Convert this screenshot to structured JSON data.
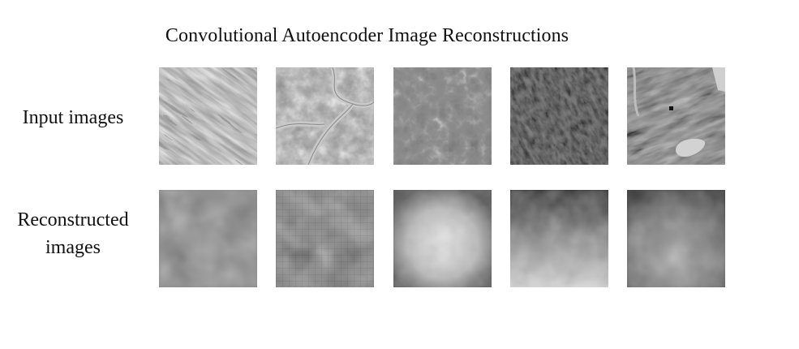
{
  "figure": {
    "title": "Convolutional Autoencoder Image Reconstructions"
  },
  "rows": [
    {
      "label_lines": [
        "Input images"
      ],
      "image_kind": "input",
      "images": [
        {
          "name": "input-image-1",
          "tone": "light-lamellar"
        },
        {
          "name": "input-image-2",
          "tone": "light-veined"
        },
        {
          "name": "input-image-3",
          "tone": "dark-network"
        },
        {
          "name": "input-image-4",
          "tone": "dark-dotted"
        },
        {
          "name": "input-image-5",
          "tone": "dark-fibrous"
        }
      ]
    },
    {
      "label_lines": [
        "Reconstructed",
        "images"
      ],
      "image_kind": "reconstructed",
      "images": [
        {
          "name": "reconstructed-image-1",
          "tone": "dark-blur"
        },
        {
          "name": "reconstructed-image-2",
          "tone": "dark-blur-grid"
        },
        {
          "name": "reconstructed-image-3",
          "tone": "light-center-blur"
        },
        {
          "name": "reconstructed-image-4",
          "tone": "medium-blur"
        },
        {
          "name": "reconstructed-image-5",
          "tone": "medium-dark-blur"
        }
      ]
    }
  ]
}
